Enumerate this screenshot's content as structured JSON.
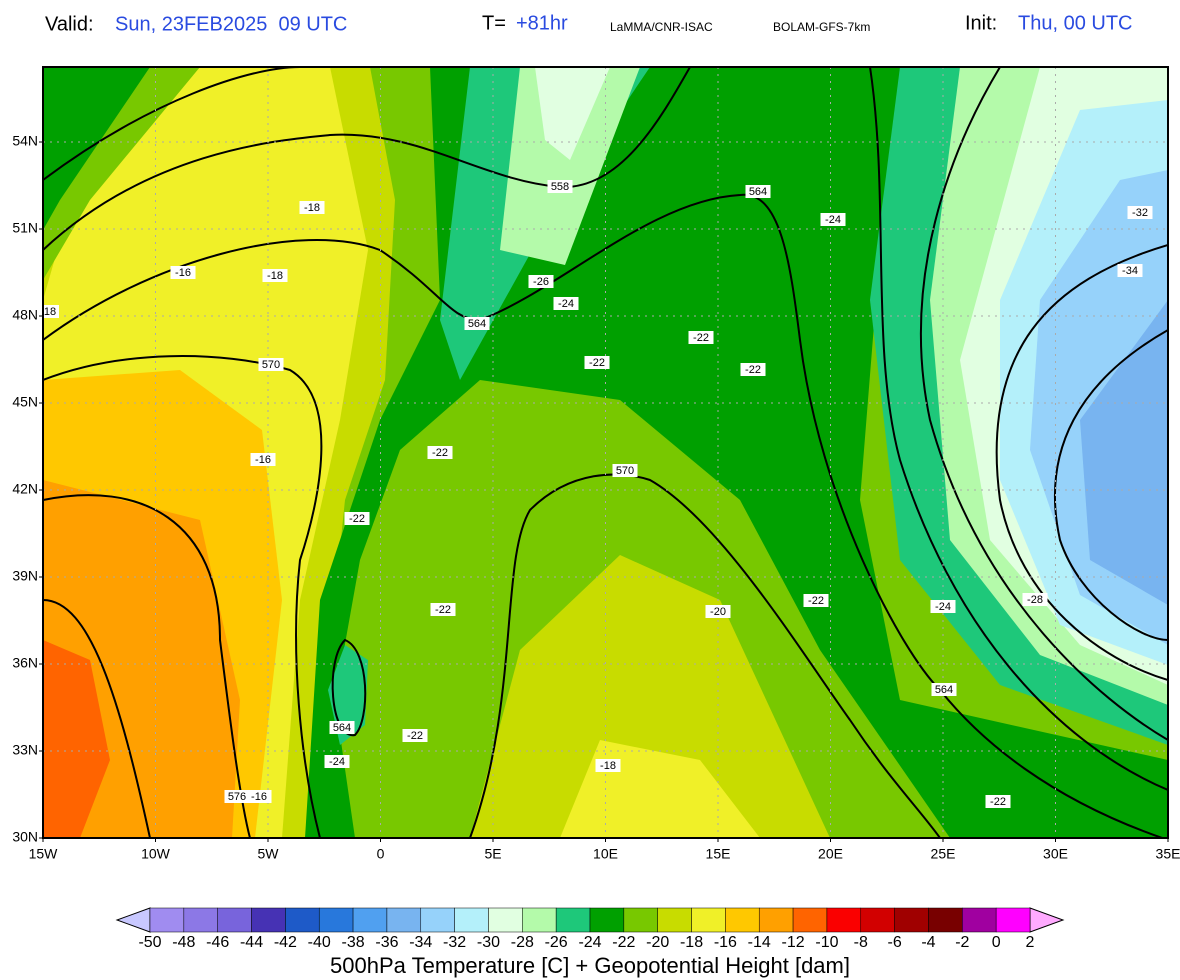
{
  "header": {
    "valid_label": "Valid:",
    "valid_time": "Sun, 23FEB2025  09 UTC",
    "forecast_label": "T=",
    "forecast_hour": "+81hr",
    "institution": "LaMMA/CNR-ISAC",
    "model": "BOLAM-GFS-7km",
    "init_label": "Init:",
    "init_time": "Thu, 00 UTC"
  },
  "map": {
    "lat_labels": [
      "54N",
      "51N",
      "48N",
      "45N",
      "42N",
      "39N",
      "36N",
      "33N",
      "30N"
    ],
    "lon_labels": [
      "15W",
      "10W",
      "5W",
      "0",
      "5E",
      "10E",
      "15E",
      "20E",
      "25E",
      "30E",
      "35E"
    ],
    "contour_labels": [
      -18,
      -16,
      -18,
      18,
      570,
      -16,
      -22,
      -22,
      -22,
      564,
      -24,
      -22,
      576,
      -16,
      558,
      564,
      -24,
      -26,
      -24,
      564,
      -22,
      -22,
      -22,
      570,
      -20,
      -22,
      -24,
      -28,
      564,
      -18,
      -22,
      -32,
      -34
    ]
  },
  "colorbar": {
    "under_color": "#c8c8ff",
    "over_color": "#ffaaff",
    "colors": [
      "#a08cf0",
      "#8c78e6",
      "#7864dc",
      "#4632b4",
      "#1e5ac8",
      "#2878dc",
      "#50a0f0",
      "#78b4f0",
      "#96d2fa",
      "#b4f0fa",
      "#e1ffe1",
      "#b4faaa",
      "#1ec87a",
      "#00a000",
      "#78c800",
      "#c8dc00",
      "#f0f028",
      "#ffc800",
      "#ffa000",
      "#ff6400",
      "#fa0000",
      "#d20000",
      "#a00000",
      "#780000",
      "#a000a0",
      "#ff00ff"
    ],
    "labels": [
      -50,
      -48,
      -46,
      -44,
      -42,
      -40,
      -38,
      -36,
      -34,
      -32,
      -30,
      -28,
      -26,
      -24,
      -22,
      -20,
      -18,
      -16,
      -14,
      -12,
      -10,
      -8,
      -6,
      -4,
      -2,
      0,
      2
    ]
  },
  "title": "500hPa Temperature [C] + Geopotential Height [dam]"
}
